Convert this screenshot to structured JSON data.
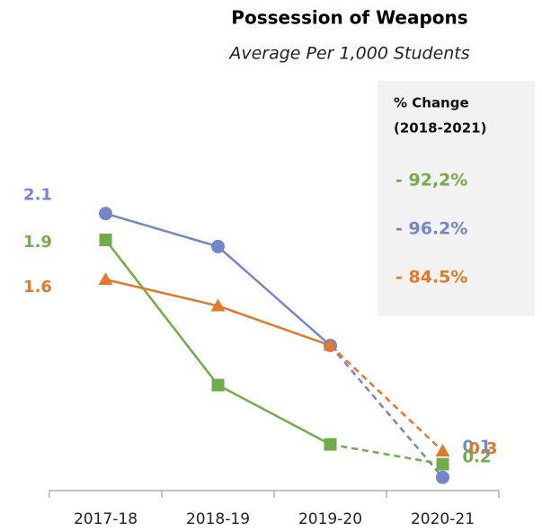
{
  "chart_data": {
    "type": "line",
    "title": "Possession of Weapons",
    "subtitle": "Average Per 1,000 Students",
    "categories": [
      "2017-18",
      "2018-19",
      "2019-20",
      "2020-21"
    ],
    "series": [
      {
        "color": "#7386c9",
        "marker": "circle",
        "values": [
          2.1,
          1.85,
          1.1,
          0.1
        ],
        "value_labels": [
          "2.1",
          null,
          null,
          "0.1"
        ]
      },
      {
        "color": "#70ad47",
        "marker": "square",
        "values": [
          1.9,
          0.8,
          0.35,
          0.2
        ],
        "value_labels": [
          "1.9",
          null,
          null,
          "0.2"
        ]
      },
      {
        "color": "#e2792a",
        "marker": "triangle",
        "values": [
          1.6,
          1.4,
          1.1,
          0.3
        ],
        "value_labels": [
          "1.6",
          null,
          null,
          "0.3"
        ]
      }
    ],
    "dash_last_segment": true,
    "ylim": [
      0,
      2.2
    ],
    "panel": {
      "title": "% Change",
      "subtitle": "(2018-2021)",
      "entries": [
        {
          "text": "- 92,2%",
          "color": "#70ad47"
        },
        {
          "text": "- 96.2%",
          "color": "#7386c9"
        },
        {
          "text": "- 84.5%",
          "color": "#e2792a"
        }
      ]
    }
  }
}
